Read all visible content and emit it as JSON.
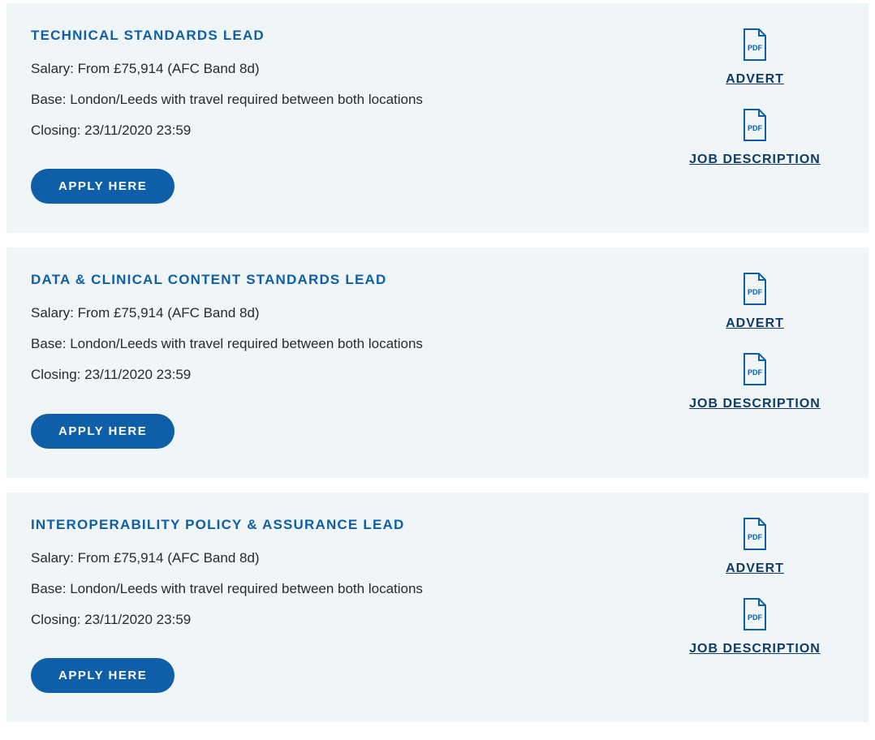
{
  "colors": {
    "card_bg": "#f0f5f7",
    "title_color": "#0f5ea8",
    "text_color": "#2a2a2a",
    "button_bg": "#0f5ea8",
    "button_text": "#ffffff",
    "link_color": "#0f3b66",
    "icon_stroke": "#0f5ea8"
  },
  "jobs": [
    {
      "title": "TECHNICAL STANDARDS LEAD",
      "salary": "Salary: From £75,914 (AFC Band 8d)",
      "base": "Base: London/Leeds with travel required between both locations",
      "closing": "Closing:  23/11/2020 23:59",
      "apply_label": "APPLY HERE",
      "advert_label": "ADVERT",
      "jobdesc_label": "JOB DESCRIPTION"
    },
    {
      "title": "DATA & CLINICAL CONTENT STANDARDS LEAD",
      "salary": "Salary: From £75,914 (AFC Band 8d)",
      "base": "Base: London/Leeds with travel required between both locations",
      "closing": "Closing:  23/11/2020 23:59",
      "apply_label": "APPLY HERE",
      "advert_label": "ADVERT",
      "jobdesc_label": "JOB DESCRIPTION"
    },
    {
      "title": "INTEROPERABILITY POLICY & ASSURANCE LEAD",
      "salary": "Salary: From £75,914 (AFC Band 8d)",
      "base": "Base: London/Leeds with travel required between both locations",
      "closing": "Closing:  23/11/2020 23:59",
      "apply_label": "APPLY HERE",
      "advert_label": "ADVERT",
      "jobdesc_label": "JOB DESCRIPTION"
    }
  ]
}
